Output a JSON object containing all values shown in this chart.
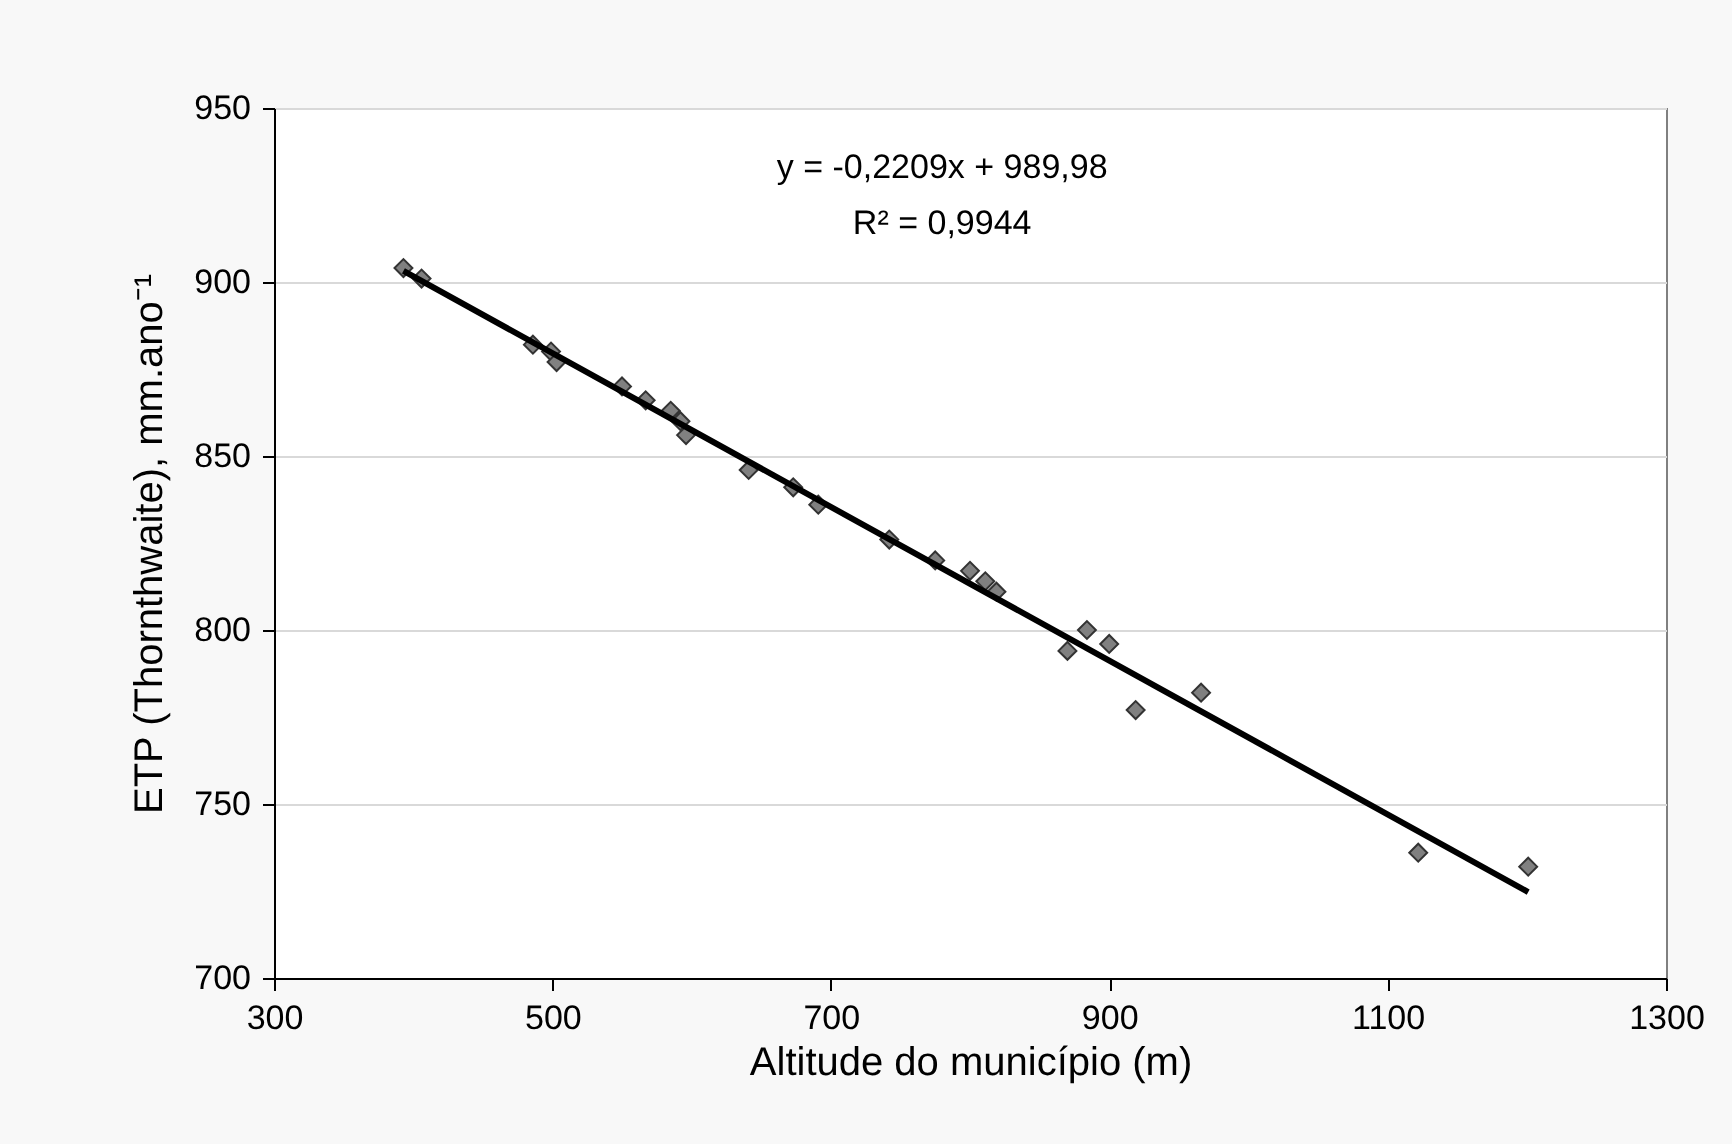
{
  "chart_data": {
    "type": "scatter",
    "xlabel": "Altitude do município (m)",
    "ylabel": "ETP (Thornthwaite), mm.ano⁻¹",
    "annotations": [
      "y = -0,2209x + 989,98",
      "R² = 0,9944"
    ],
    "xlim": [
      300,
      1300
    ],
    "xticks": [
      300,
      500,
      700,
      900,
      1100,
      1300
    ],
    "ylim": [
      700,
      950
    ],
    "yticks": [
      700,
      750,
      800,
      850,
      900,
      950
    ],
    "grid": "y",
    "series": [
      {
        "marker": "diamond",
        "color": "#808080",
        "x": [
          393,
          406,
          486,
          499,
          503,
          550,
          567,
          585,
          592,
          596,
          641,
          673,
          691,
          742,
          775,
          800,
          811,
          819,
          870,
          884,
          900,
          919,
          966,
          1122,
          1201
        ],
        "values": [
          904,
          901,
          882,
          880,
          877,
          870,
          866,
          863,
          860,
          856,
          846,
          841,
          836,
          826,
          820,
          817,
          814,
          811,
          794,
          800,
          796,
          777,
          782,
          736,
          732
        ]
      },
      {
        "type": "line",
        "marker": "none",
        "color": "#000000",
        "line_style": "solid",
        "x": [
          393,
          1201
        ],
        "values": [
          903.2,
          724.7
        ]
      }
    ]
  }
}
